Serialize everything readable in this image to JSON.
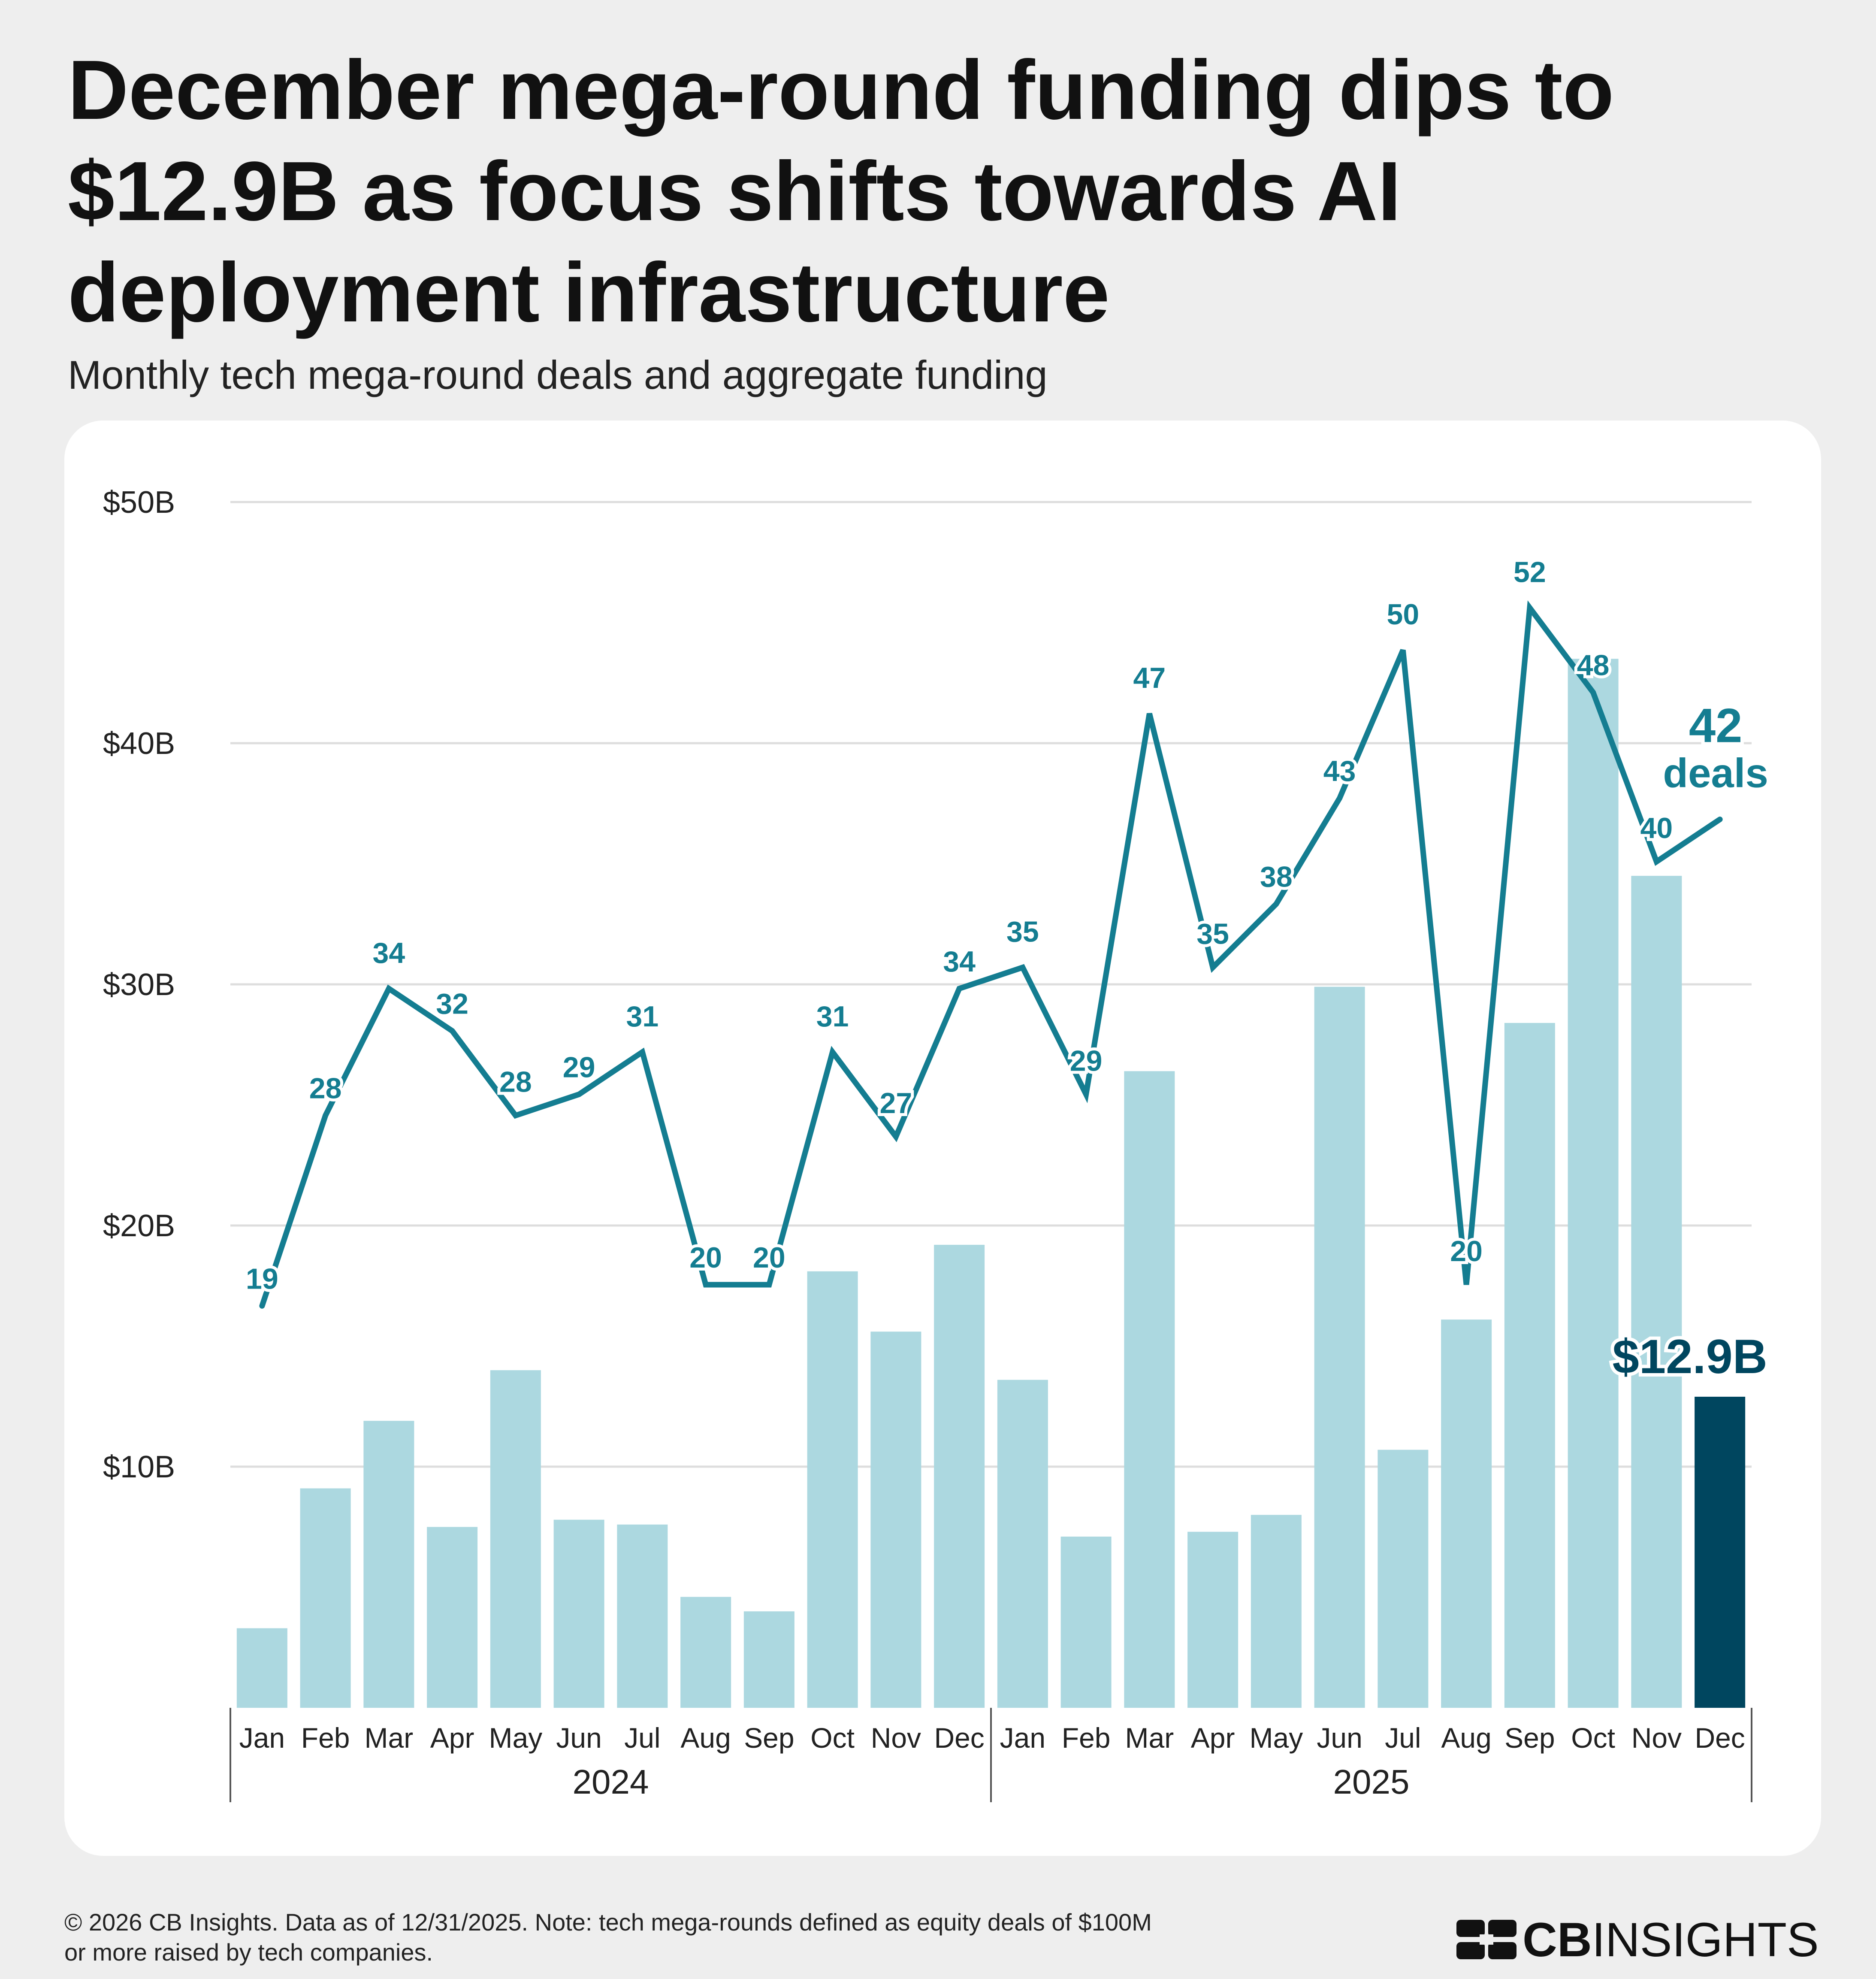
{
  "title": "December mega-round funding dips to $12.9B as focus shifts towards AI deployment infrastructure",
  "subtitle": "Monthly tech mega-round deals and aggregate funding",
  "colors": {
    "bar": "#acd8e0",
    "bar_highlight": "#00465f",
    "line": "#147d91",
    "grid": "#dddddd",
    "background": "#eeeeee",
    "card": "#ffffff"
  },
  "chart_data": {
    "type": "bar",
    "title": "Monthly tech mega-round deals and aggregate funding",
    "categories": [
      "Jan",
      "Feb",
      "Mar",
      "Apr",
      "May",
      "Jun",
      "Jul",
      "Aug",
      "Sep",
      "Oct",
      "Nov",
      "Dec",
      "Jan",
      "Feb",
      "Mar",
      "Apr",
      "May",
      "Jun",
      "Jul",
      "Aug",
      "Sep",
      "Oct",
      "Nov",
      "Dec"
    ],
    "years": [
      {
        "label": "2024",
        "start": 0,
        "end": 11
      },
      {
        "label": "2025",
        "start": 12,
        "end": 23
      }
    ],
    "series": [
      {
        "name": "Aggregate funding ($B)",
        "type": "bar",
        "values": [
          3.3,
          9.1,
          11.9,
          7.5,
          14.0,
          7.8,
          7.6,
          4.6,
          4.0,
          18.1,
          15.6,
          19.2,
          13.6,
          7.1,
          26.4,
          7.3,
          8.0,
          29.9,
          10.7,
          16.1,
          28.4,
          43.5,
          34.5,
          12.9
        ],
        "highlight_index": 23
      },
      {
        "name": "Deals",
        "type": "line",
        "values": [
          19,
          28,
          34,
          32,
          28,
          29,
          31,
          20,
          20,
          31,
          27,
          34,
          35,
          29,
          47,
          35,
          38,
          43,
          50,
          20,
          52,
          48,
          40,
          42
        ],
        "labels": [
          "19",
          "28",
          "34",
          "32",
          "28",
          "29",
          "31",
          "20",
          "20",
          "31",
          "27",
          "34",
          "35",
          "29",
          "47",
          "35",
          "38",
          "43",
          "50",
          "20",
          "52",
          "48",
          "40",
          ""
        ]
      }
    ],
    "ylim": [
      0,
      50
    ],
    "y_ticks": [
      {
        "value": 10,
        "label": "$10B"
      },
      {
        "value": 20,
        "label": "$20B"
      },
      {
        "value": 30,
        "label": "$30B"
      },
      {
        "value": 40,
        "label": "$40B"
      },
      {
        "value": 50,
        "label": "$50B"
      }
    ],
    "deals_axis_max": 57,
    "annotations": {
      "last_deals_value": "42",
      "last_deals_unit": "deals",
      "last_funding": "$12.9B"
    }
  },
  "footer": {
    "line1": "© 2026 CB Insights. Data as of 12/31/2025. Note: tech mega-rounds defined as equity deals of $100M",
    "line2": "or more raised by tech companies."
  },
  "logo": {
    "bold": "CB",
    "light": "INSIGHTS"
  }
}
